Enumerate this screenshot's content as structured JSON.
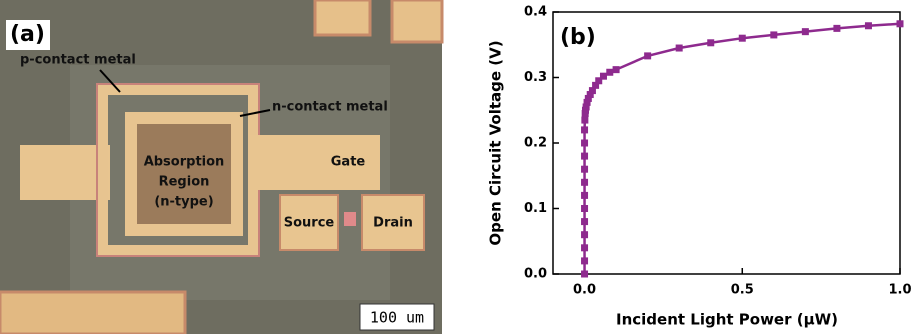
{
  "micrograph": {
    "panel_label": "(a)",
    "p_contact": "p-contact metal",
    "n_contact": "n-contact metal",
    "absorption": [
      "Absorption",
      "Region",
      "(n-type)"
    ],
    "gate": "Gate",
    "source": "Source",
    "drain": "Drain",
    "scale_bar": "100 um"
  },
  "chart_data": {
    "type": "line",
    "panel_label": "(b)",
    "x_label": "Incident Light Power (μW)",
    "y_label": "Open Circuit Voltage (V)",
    "x": [
      0,
      0,
      0,
      0,
      0,
      0,
      0,
      0,
      0,
      0,
      0,
      0,
      0.001,
      0.002,
      0.003,
      0.005,
      0.008,
      0.012,
      0.018,
      0.025,
      0.035,
      0.045,
      0.06,
      0.08,
      0.1,
      0.2,
      0.3,
      0.4,
      0.5,
      0.6,
      0.7,
      0.8,
      0.9,
      1.0
    ],
    "series": [
      {
        "color": "#8e2a8e",
        "values": [
          0,
          0.02,
          0.04,
          0.06,
          0.08,
          0.1,
          0.12,
          0.14,
          0.16,
          0.18,
          0.2,
          0.22,
          0.235,
          0.245,
          0.25,
          0.255,
          0.262,
          0.268,
          0.274,
          0.28,
          0.288,
          0.295,
          0.302,
          0.308,
          0.312,
          0.333,
          0.345,
          0.353,
          0.36,
          0.365,
          0.37,
          0.375,
          0.379,
          0.382
        ]
      }
    ],
    "xlim": [
      -0.1,
      1.0
    ],
    "ylim": [
      0,
      0.4
    ],
    "xticks": [
      {
        "value": 0,
        "label": "0.0"
      },
      0.5,
      {
        "value": 1,
        "label": "1.0"
      }
    ],
    "yticks": [
      {
        "value": 0,
        "label": "0.0"
      },
      0.1,
      0.2,
      0.3,
      0.4
    ]
  }
}
